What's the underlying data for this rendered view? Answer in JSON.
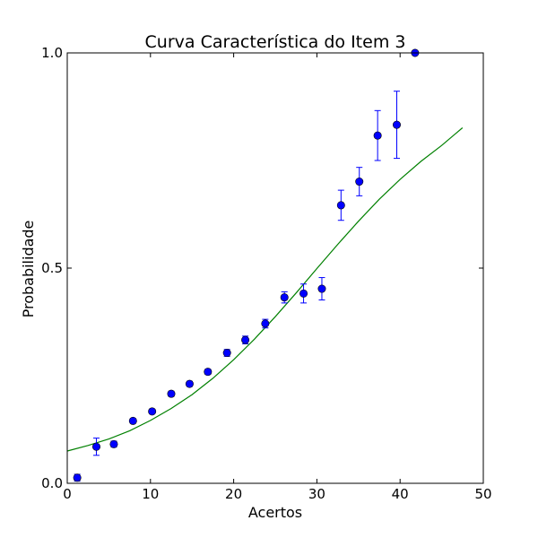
{
  "chart_data": {
    "type": "scatter",
    "title": "Curva Característica do Item 3",
    "xlabel": "Acertos",
    "ylabel": "Probabilidade",
    "xlim": [
      0,
      50
    ],
    "ylim": [
      0,
      1
    ],
    "x_ticks": [
      {
        "value": 0,
        "label": "0"
      },
      {
        "value": 10,
        "label": "10"
      },
      {
        "value": 20,
        "label": "20"
      },
      {
        "value": 30,
        "label": "30"
      },
      {
        "value": 40,
        "label": "40"
      },
      {
        "value": 50,
        "label": "50"
      }
    ],
    "y_ticks": [
      {
        "value": 0,
        "label": "0.0"
      },
      {
        "value": 0.5,
        "label": "0.5"
      },
      {
        "value": 1,
        "label": "1.0"
      }
    ],
    "grid": false,
    "colors": {
      "points": "#0000ff",
      "errorbars": "#0000ff",
      "curve": "#008000"
    },
    "series": [
      {
        "kind": "errorbar",
        "x": [
          1.2,
          3.5,
          5.6,
          7.9,
          10.2,
          12.5,
          14.7,
          16.9,
          19.2,
          21.4,
          23.8,
          26.1,
          28.4,
          30.6,
          32.9,
          35.1,
          37.3,
          39.6,
          41.8
        ],
        "y": [
          0.013,
          0.085,
          0.091,
          0.145,
          0.167,
          0.208,
          0.231,
          0.259,
          0.303,
          0.333,
          0.371,
          0.432,
          0.441,
          0.452,
          0.646,
          0.701,
          0.808,
          0.833,
          1.0
        ],
        "yerr": [
          0.008,
          0.02,
          0.007,
          0.005,
          0.005,
          0.006,
          0.006,
          0.006,
          0.008,
          0.009,
          0.01,
          0.013,
          0.022,
          0.026,
          0.035,
          0.033,
          0.058,
          0.078,
          0.0
        ]
      },
      {
        "kind": "fitted-curve",
        "x": [
          0,
          2.5,
          5,
          7.5,
          10,
          12.5,
          15,
          17.5,
          20,
          22.5,
          25,
          27.5,
          30,
          32.5,
          35,
          37.5,
          40,
          42.5,
          45,
          47.5
        ],
        "y": [
          0.075,
          0.088,
          0.103,
          0.122,
          0.146,
          0.174,
          0.206,
          0.244,
          0.287,
          0.335,
          0.387,
          0.442,
          0.499,
          0.555,
          0.609,
          0.66,
          0.706,
          0.748,
          0.785,
          0.826
        ]
      }
    ]
  }
}
